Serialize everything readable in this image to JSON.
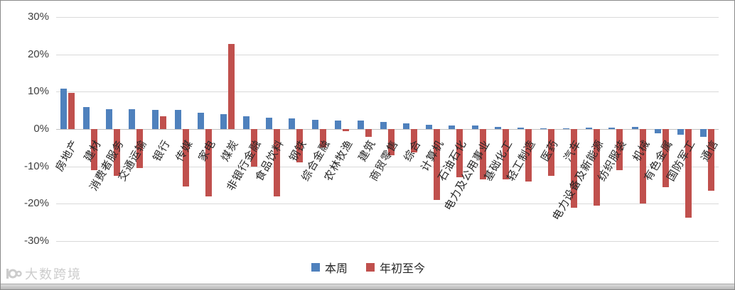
{
  "chart_data": {
    "type": "bar",
    "title": "",
    "xlabel": "",
    "ylabel": "",
    "ylim": [
      -30,
      30
    ],
    "yticks": [
      {
        "value": 30,
        "label": "30%"
      },
      {
        "value": 20,
        "label": "20%"
      },
      {
        "value": 10,
        "label": "10%"
      },
      {
        "value": 0,
        "label": "0%"
      },
      {
        "value": -10,
        "label": "-10%"
      },
      {
        "value": -20,
        "label": "-20%"
      },
      {
        "value": -30,
        "label": "-30%"
      }
    ],
    "grid": true,
    "legend_position": "bottom",
    "categories": [
      "房地产",
      "建材",
      "消费者服务",
      "交通运输",
      "银行",
      "传媒",
      "家电",
      "煤炭",
      "非银行金融",
      "食品饮料",
      "钢铁",
      "综合金融",
      "农林牧渔",
      "建筑",
      "商贸零售",
      "综合",
      "计算机",
      "石油石化",
      "电力及公用事业",
      "基础化工",
      "轻工制造",
      "医药",
      "汽车",
      "电力设备及新能源",
      "纺织服装",
      "机械",
      "有色金属",
      "国防军工",
      "通信"
    ],
    "series": [
      {
        "name": "本周",
        "color": "#4F81BD",
        "values": [
          10.8,
          5.8,
          5.3,
          5.3,
          5.2,
          5.2,
          4.3,
          4.0,
          3.5,
          3.1,
          2.9,
          2.4,
          2.2,
          2.2,
          1.9,
          1.6,
          1.1,
          1.0,
          0.9,
          0.5,
          0.3,
          0.1,
          0.2,
          0.4,
          0.3,
          0.5,
          -1.1,
          -1.6,
          -2.0
        ]
      },
      {
        "name": "年初至今",
        "color": "#C0504D",
        "values": [
          9.7,
          -11.0,
          -12.5,
          -10.5,
          3.5,
          -15.3,
          -18.0,
          22.8,
          -10.0,
          -18.0,
          -9.0,
          -5.0,
          -0.5,
          -2.0,
          -7.0,
          -6.3,
          -19.0,
          -13.0,
          -13.5,
          -13.5,
          -14.0,
          -12.5,
          -21.0,
          -20.5,
          -11.0,
          -20.0,
          -15.5,
          -23.8,
          -16.5
        ]
      }
    ]
  },
  "legend": {
    "items": [
      {
        "label": "本周",
        "color": "#4F81BD"
      },
      {
        "label": "年初至今",
        "color": "#C0504D"
      }
    ]
  },
  "watermark": {
    "text": "大数跨境"
  }
}
